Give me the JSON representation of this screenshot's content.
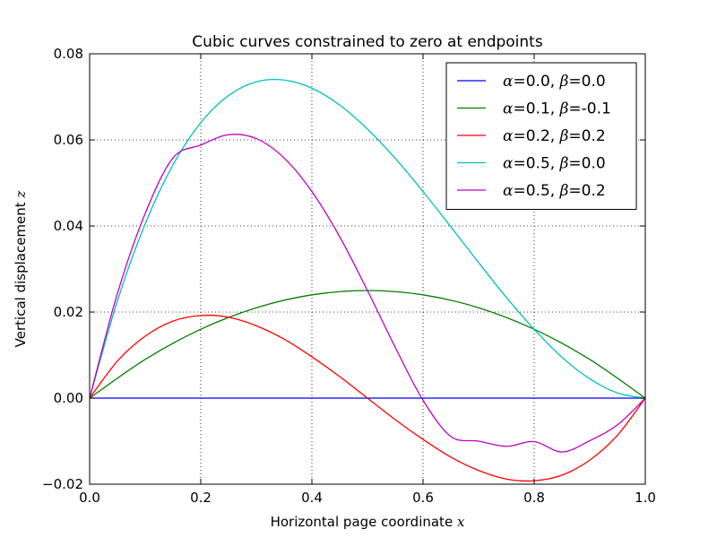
{
  "chart_data": {
    "type": "line",
    "title": "Cubic curves constrained to zero at endpoints",
    "xlabel_text": "Horizontal page coordinate ",
    "xlabel_var": "x",
    "ylabel_text": "Vertical displacement ",
    "ylabel_var": "z",
    "xlim": [
      0.0,
      1.0
    ],
    "ylim": [
      -0.02,
      0.08
    ],
    "xticks": [
      0.0,
      0.2,
      0.4,
      0.6,
      0.8,
      1.0
    ],
    "xtick_labels": [
      "0.0",
      "0.2",
      "0.4",
      "0.6",
      "0.8",
      "1.0"
    ],
    "yticks": [
      -0.02,
      0.0,
      0.02,
      0.04,
      0.06,
      0.08
    ],
    "ytick_labels": [
      "−0.02",
      "0.00",
      "0.02",
      "0.04",
      "0.06",
      "0.08"
    ],
    "grid": true,
    "legend_position": "top-right",
    "series": [
      {
        "name": "α=0.0, β=0.0",
        "alpha": "0.0",
        "beta": "0.0",
        "color": "#0000ff",
        "x": [
          0,
          0.1,
          0.2,
          0.3,
          0.4,
          0.5,
          0.6,
          0.7,
          0.8,
          0.9,
          1.0
        ],
        "y": [
          0,
          0,
          0,
          0,
          0,
          0,
          0,
          0,
          0,
          0,
          0
        ]
      },
      {
        "name": "α=0.1, β=-0.1",
        "alpha": "0.1",
        "beta": "-0.1",
        "color": "#008000",
        "x": [
          0,
          0.1,
          0.2,
          0.3,
          0.4,
          0.5,
          0.6,
          0.7,
          0.8,
          0.9,
          1.0
        ],
        "y": [
          0,
          0.009,
          0.016,
          0.021,
          0.024,
          0.025,
          0.024,
          0.021,
          0.016,
          0.009,
          0
        ]
      },
      {
        "name": "α=0.2, β=0.2",
        "alpha": "0.2",
        "beta": "0.2",
        "color": "#ff0000",
        "x": [
          0,
          0.05,
          0.1,
          0.15,
          0.2,
          0.25,
          0.3,
          0.35,
          0.4,
          0.45,
          0.5,
          0.55,
          0.6,
          0.65,
          0.7,
          0.75,
          0.8,
          0.85,
          0.9,
          0.95,
          1.0
        ],
        "y": [
          0,
          0.0086,
          0.0144,
          0.0179,
          0.0192,
          0.0188,
          0.0168,
          0.0137,
          0.0096,
          0.005,
          0,
          -0.005,
          -0.0096,
          -0.0137,
          -0.0168,
          -0.0188,
          -0.0192,
          -0.0179,
          -0.0144,
          -0.0086,
          0
        ]
      },
      {
        "name": "α=0.5, β=0.0",
        "alpha": "0.5",
        "beta": "0.0",
        "color": "#00bfbf",
        "x": [
          0,
          0.05,
          0.1,
          0.15,
          0.2,
          0.25,
          0.3,
          0.35,
          0.4,
          0.45,
          0.5,
          0.55,
          0.6,
          0.65,
          0.7,
          0.75,
          0.8,
          0.85,
          0.9,
          0.95,
          1.0
        ],
        "y": [
          0,
          0.0226,
          0.0405,
          0.0542,
          0.064,
          0.0703,
          0.0735,
          0.0739,
          0.072,
          0.0681,
          0.0625,
          0.0557,
          0.048,
          0.0398,
          0.0315,
          0.0234,
          0.016,
          0.0095,
          0.0045,
          0.0012,
          0
        ]
      },
      {
        "name": "α=0.5, β=0.2",
        "alpha": "0.5",
        "beta": "0.2",
        "color": "#bf00bf",
        "x": [
          0,
          0.05,
          0.1,
          0.15,
          0.2,
          0.25,
          0.3,
          0.35,
          0.4,
          0.45,
          0.5,
          0.55,
          0.6,
          0.65,
          0.7,
          0.75,
          0.8,
          0.85,
          0.9,
          0.95,
          1.0
        ],
        "y": [
          0,
          0.0243,
          0.0429,
          0.0558,
          0.0588,
          0.0612,
          0.0603,
          0.0558,
          0.048,
          0.0375,
          0.025,
          0.0118,
          -0.0005,
          -0.0089,
          -0.01,
          -0.0112,
          -0.0101,
          -0.0125,
          -0.0099,
          -0.0062,
          0
        ]
      }
    ]
  }
}
